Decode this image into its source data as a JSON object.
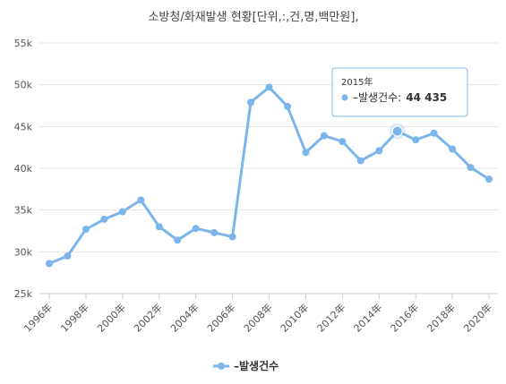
{
  "chart_data": {
    "type": "line",
    "title": "소방청/화재발생 현황[단위,:,건,명,백만원],",
    "x": [
      "1996年",
      "1997年",
      "1998年",
      "1999年",
      "2000年",
      "2001年",
      "2002年",
      "2003年",
      "2004年",
      "2005年",
      "2006年",
      "2007年",
      "2008年",
      "2009年",
      "2010年",
      "2011年",
      "2012年",
      "2013年",
      "2014年",
      "2015年",
      "2016年",
      "2017年",
      "2018年",
      "2019年",
      "2020年"
    ],
    "x_tick_labels": [
      "1996年",
      "1998年",
      "2000年",
      "2002年",
      "2004年",
      "2006年",
      "2008年",
      "2010年",
      "2012年",
      "2014年",
      "2016年",
      "2018年",
      "2020年"
    ],
    "series": [
      {
        "name": "–발생건수",
        "color": "#7cb5ec",
        "values": [
          28600,
          29500,
          32700,
          33900,
          34800,
          36200,
          33000,
          31400,
          32800,
          32300,
          31800,
          47900,
          49700,
          47400,
          41900,
          43900,
          43200,
          40900,
          42100,
          44435,
          43400,
          44200,
          42300,
          40100,
          38700
        ]
      }
    ],
    "ylim": [
      25000,
      55000
    ],
    "y_ticks": [
      25000,
      30000,
      35000,
      40000,
      45000,
      50000,
      55000
    ],
    "y_tick_labels": [
      "25k",
      "30k",
      "35k",
      "40k",
      "45k",
      "50k",
      "55k"
    ],
    "grid": true,
    "legend_position": "bottom-center",
    "tooltip": {
      "category": "2015年",
      "series_label": "–발생건수:",
      "value_text": "44 435",
      "index": 19
    }
  }
}
